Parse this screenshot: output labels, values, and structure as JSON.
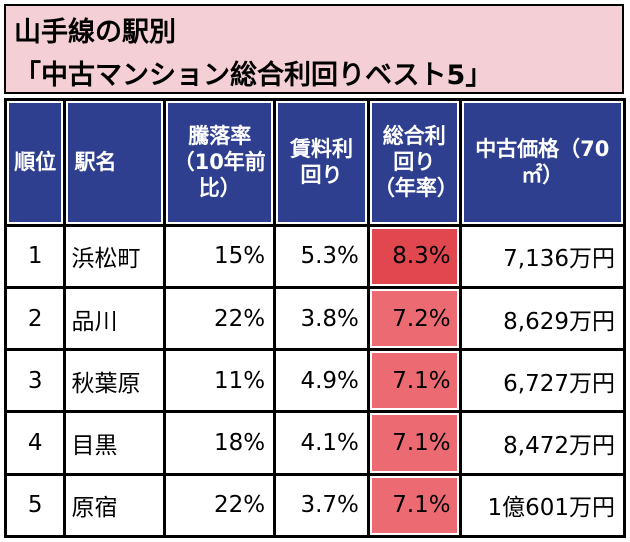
{
  "title": {
    "line1": "山手線の駅別",
    "line2": "「中古マンション総合利回りベスト5」"
  },
  "table": {
    "headers": [
      "順位",
      "駅名",
      "騰落率（10年前比）",
      "賃料利回り",
      "総合利回り（年率）",
      "中古価格（70㎡）"
    ],
    "rows": [
      {
        "rank": "1",
        "station": "浜松町",
        "change": "15%",
        "rent_yield": "5.3%",
        "total_yield": "8.3%",
        "price": "7,136万円"
      },
      {
        "rank": "2",
        "station": "品川",
        "change": "22%",
        "rent_yield": "3.8%",
        "total_yield": "7.2%",
        "price": "8,629万円"
      },
      {
        "rank": "3",
        "station": "秋葉原",
        "change": "11%",
        "rent_yield": "4.9%",
        "total_yield": "7.1%",
        "price": "6,727万円"
      },
      {
        "rank": "4",
        "station": "目黒",
        "change": "18%",
        "rent_yield": "4.1%",
        "total_yield": "7.1%",
        "price": "8,472万円"
      },
      {
        "rank": "5",
        "station": "原宿",
        "change": "22%",
        "rent_yield": "3.7%",
        "total_yield": "7.1%",
        "price": "1億601万円"
      }
    ]
  },
  "colors": {
    "title_bg": "#f4cfd6",
    "header_bg": "#2f3f8f",
    "highlight_strong": "#e0474f",
    "highlight_light": "#ec6b72"
  }
}
